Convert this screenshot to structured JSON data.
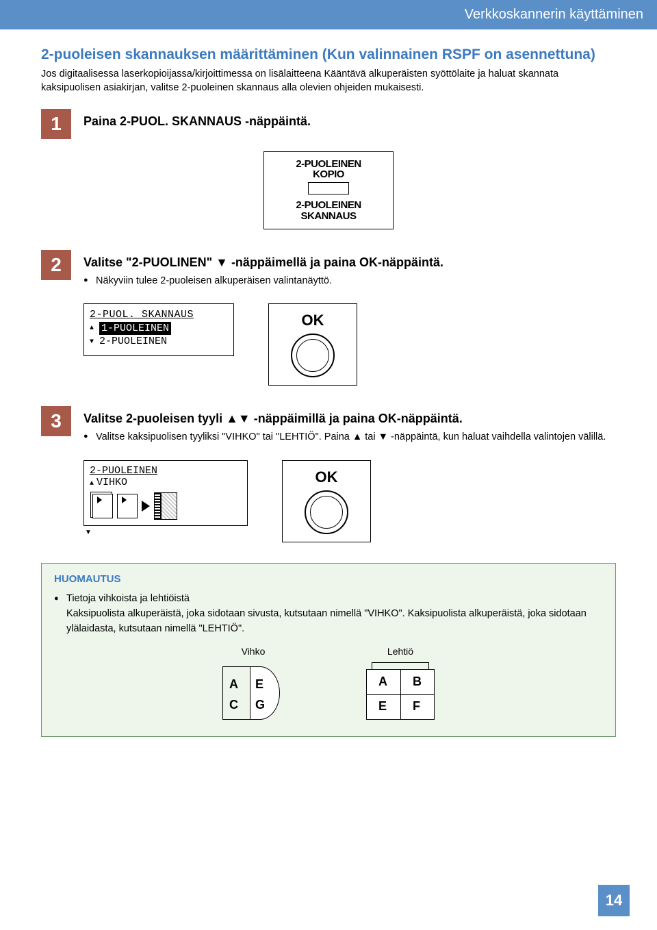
{
  "banner": "Verkkoskannerin käyttäminen",
  "section_title": "2-puoleisen skannauksen määrittäminen (Kun valinnainen RSPF on asennettuna)",
  "intro": "Jos digitaalisessa laserkopioijassa/kirjoittimessa on lisälaitteena Kääntävä alkuperäisten syöttölaite ja haluat skannata kaksipuolisen asiakirjan, valitse 2-puoleinen skannaus alla olevien ohjeiden mukaisesti.",
  "steps": {
    "s1": {
      "num": "1",
      "title": "Paina 2-PUOL. SKANNAUS -näppäintä.",
      "panel": {
        "l1a": "2-PUOLEINEN",
        "l1b": "KOPIO",
        "l2a": "2-PUOLEINEN",
        "l2b": "SKANNAUS"
      }
    },
    "s2": {
      "num": "2",
      "title": "Valitse \"2-PUOLINEN\" ▼ -näppäimellä ja paina OK-näppäintä.",
      "bullet": "Näkyviin tulee 2-puoleisen alkuperäisen valintanäyttö.",
      "lcd": {
        "hdr": "2-PUOL. SKANNAUS",
        "opt1": "1-PUOLEINEN",
        "opt2": "2-PUOLEINEN"
      },
      "ok": "OK"
    },
    "s3": {
      "num": "3",
      "title": "Valitse 2-puoleisen tyyli ▲▼ -näppäimillä ja paina OK-näppäintä.",
      "bullet": "Valitse kaksipuolisen tyyliksi \"VIHKO\" tai \"LEHTIÖ\". Paina ▲ tai ▼ -näppäintä, kun haluat vaihdella valintojen välillä.",
      "lcd": {
        "hdr": "2-PUOLEINEN",
        "opt1": "VIHKO"
      },
      "ok": "OK"
    }
  },
  "note": {
    "title": "HUOMAUTUS",
    "line1": "Tietoja vihkoista ja lehtiöistä",
    "body": "Kaksipuolista alkuperäistä, joka sidotaan sivusta, kutsutaan nimellä \"VIHKO\". Kaksipuolista alkuperäistä, joka sidotaan ylälaidasta, kutsutaan nimellä \"LEHTIÖ\".",
    "col1": "Vihko",
    "col2": "Lehtiö",
    "letters": {
      "A": "A",
      "B": "B",
      "C": "C",
      "E": "E",
      "F": "F",
      "G": "G"
    }
  },
  "page_number": "14",
  "colors": {
    "banner_bg": "#5a8fc7",
    "accent_blue": "#3b7ac0",
    "step_bg": "#a85a4a",
    "note_bg": "#eef5ea",
    "note_border": "#6b9b6b"
  }
}
